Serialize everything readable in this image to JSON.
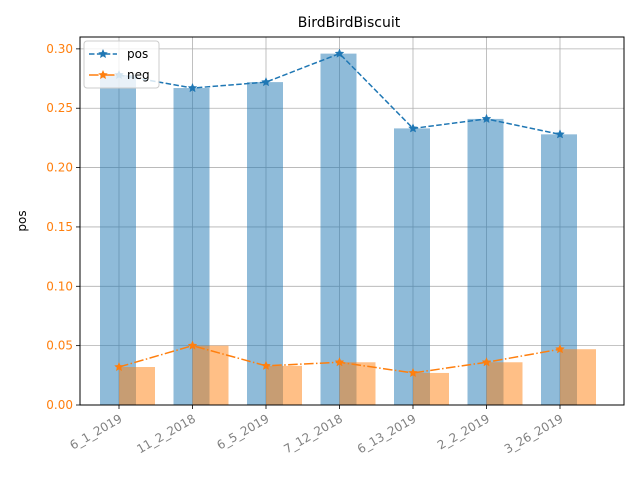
{
  "chart_data": {
    "type": "bar",
    "title": "BirdBirdBiscuit",
    "xlabel": "",
    "ylabel": "pos",
    "categories": [
      "6_1_2019",
      "11_2_2018",
      "6_5_2019",
      "7_12_2018",
      "6_13_2019",
      "2_2_2019",
      "3_26_2019"
    ],
    "series": [
      {
        "name": "pos",
        "color": "#1f77b4",
        "values": [
          0.278,
          0.267,
          0.272,
          0.296,
          0.233,
          0.241,
          0.228
        ]
      },
      {
        "name": "neg",
        "color": "#ff7f0e",
        "values": [
          0.032,
          0.05,
          0.033,
          0.036,
          0.027,
          0.036,
          0.047
        ]
      }
    ],
    "yticks": [
      "0.00",
      "0.05",
      "0.10",
      "0.15",
      "0.20",
      "0.25",
      "0.30"
    ],
    "ylim": [
      0,
      0.31
    ],
    "grid": true,
    "legend_position": "top-left",
    "ytick_color": "#ff7f0e",
    "xtick_color": "#808080"
  }
}
